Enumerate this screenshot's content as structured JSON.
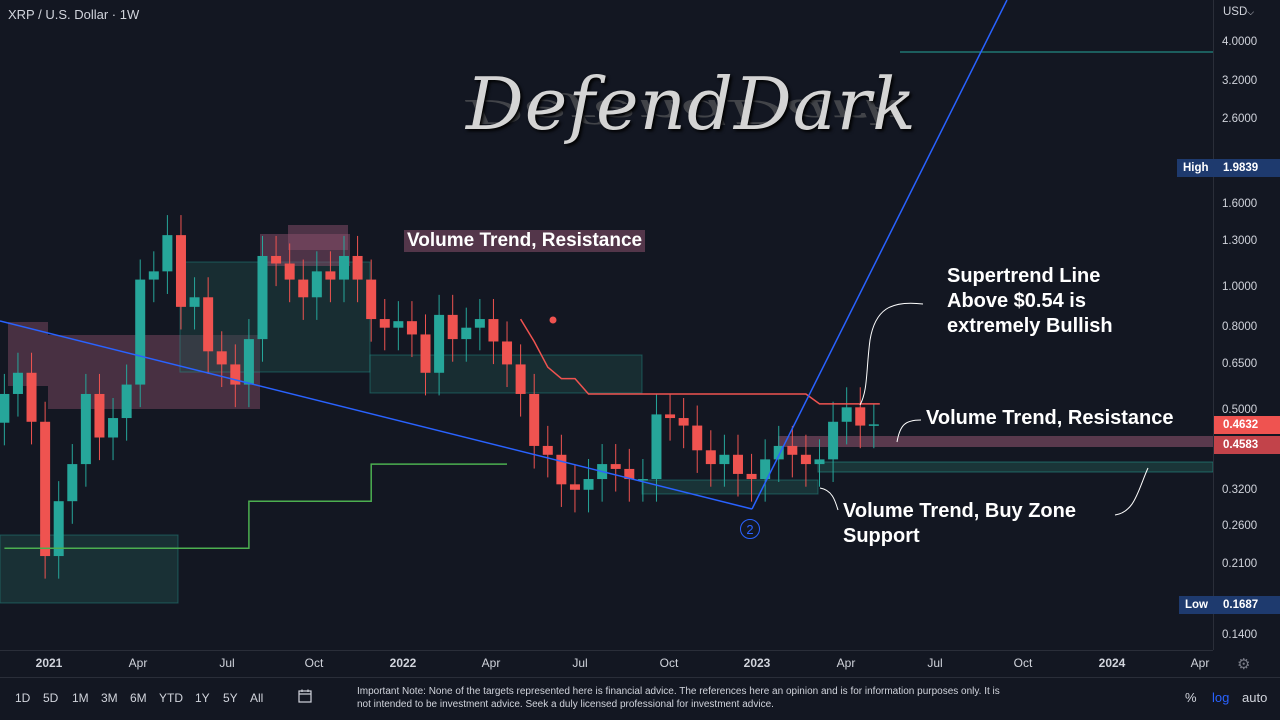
{
  "header": {
    "symbol": "XRP / U.S. Dollar · 1W"
  },
  "logo": {
    "text": "DefendDark"
  },
  "price_axis": {
    "currency": "USD",
    "currency_icon": "chevron-down-icon",
    "ticks": [
      "4.0000",
      "3.2000",
      "2.6000",
      "1.6000",
      "1.3000",
      "1.0000",
      "0.8000",
      "0.6500",
      "0.5000",
      "0.3200",
      "0.2600",
      "0.2100",
      "0.1400"
    ],
    "current_price": "0.4632",
    "support_price": "0.4583",
    "high_label": "High",
    "high_value": "1.9839",
    "low_label": "Low",
    "low_value": "0.1687"
  },
  "time_axis": {
    "labels": [
      "2021",
      "Apr",
      "Jul",
      "Oct",
      "2022",
      "Apr",
      "Jul",
      "Oct",
      "2023",
      "Apr",
      "Jul",
      "Oct",
      "2024",
      "Apr"
    ],
    "settings_icon": "gear-icon"
  },
  "annotations": {
    "top_resistance": "Volume Trend, Resistance",
    "supertrend_line1": "Supertrend Line",
    "supertrend_line2": "Above $0.54 is",
    "supertrend_line3": "extremely Bullish",
    "right_resistance": "Volume Trend, Resistance",
    "buy_zone_line1": "Volume Trend, Buy Zone",
    "buy_zone_line2": "Support",
    "wave_label": "2"
  },
  "bottom_bar": {
    "ranges": [
      "1D",
      "5D",
      "1M",
      "3M",
      "6M",
      "YTD",
      "1Y",
      "5Y",
      "All"
    ],
    "calendar_icon": "calendar-range-icon",
    "note": "Important Note: None of the targets represented here is financial advice. The references here an opinion and is for information purposes only. It is not intended to be investment advice. Seek a duly licensed professional for investment advice.",
    "percent": "%",
    "log": "log",
    "auto": "auto"
  },
  "colors": {
    "background": "#131722",
    "up": "#26a69a",
    "down": "#ef5350",
    "trendline": "#2962ff",
    "supertrend_green": "#4caf50",
    "supertrend_red": "#ef5350",
    "resistance_zone": "#89506b",
    "support_zone": "#1f4a48"
  },
  "chart_data": {
    "type": "candlestick",
    "y_scale": "log",
    "ylim": [
      0.12,
      4.8
    ],
    "x": [
      "2020-11-16",
      "2020-11-30",
      "2020-12-14",
      "2020-12-28",
      "2021-01-11",
      "2021-01-25",
      "2021-02-08",
      "2021-02-22",
      "2021-03-08",
      "2021-03-22",
      "2021-04-05",
      "2021-04-19",
      "2021-05-03",
      "2021-05-17",
      "2021-05-31",
      "2021-06-14",
      "2021-06-28",
      "2021-07-12",
      "2021-07-26",
      "2021-08-09",
      "2021-08-23",
      "2021-09-06",
      "2021-09-20",
      "2021-10-04",
      "2021-10-18",
      "2021-11-01",
      "2021-11-15",
      "2021-11-29",
      "2021-12-13",
      "2021-12-27",
      "2022-01-10",
      "2022-01-24",
      "2022-02-07",
      "2022-02-21",
      "2022-03-07",
      "2022-03-21",
      "2022-04-04",
      "2022-04-18",
      "2022-05-02",
      "2022-05-16",
      "2022-05-30",
      "2022-06-13",
      "2022-06-27",
      "2022-07-11",
      "2022-07-25",
      "2022-08-08",
      "2022-08-22",
      "2022-09-05",
      "2022-09-19",
      "2022-10-03",
      "2022-10-17",
      "2022-10-31",
      "2022-11-14",
      "2022-11-28",
      "2022-12-12",
      "2022-12-26",
      "2023-01-09",
      "2023-01-23",
      "2023-02-06",
      "2023-02-20",
      "2023-03-06",
      "2023-03-20",
      "2023-04-03",
      "2023-04-17",
      "2023-05-01"
    ],
    "close": [
      0.55,
      0.62,
      0.47,
      0.22,
      0.3,
      0.37,
      0.55,
      0.43,
      0.48,
      0.58,
      1.05,
      1.1,
      1.35,
      0.9,
      0.95,
      0.7,
      0.65,
      0.58,
      0.75,
      1.2,
      1.15,
      1.05,
      0.95,
      1.1,
      1.05,
      1.2,
      1.05,
      0.84,
      0.8,
      0.83,
      0.77,
      0.62,
      0.86,
      0.75,
      0.8,
      0.84,
      0.74,
      0.65,
      0.55,
      0.41,
      0.39,
      0.33,
      0.32,
      0.34,
      0.37,
      0.36,
      0.34,
      0.34,
      0.49,
      0.48,
      0.46,
      0.4,
      0.37,
      0.39,
      0.35,
      0.34,
      0.38,
      0.41,
      0.39,
      0.37,
      0.38,
      0.47,
      0.51,
      0.46,
      0.4632
    ],
    "supertrend": [
      0.23,
      0.23,
      0.23,
      0.23,
      0.23,
      0.23,
      0.23,
      0.23,
      0.23,
      0.23,
      0.23,
      0.23,
      0.23,
      0.23,
      0.23,
      0.23,
      0.23,
      0.23,
      0.3,
      0.3,
      0.3,
      0.3,
      0.3,
      0.3,
      0.3,
      0.3,
      0.3,
      0.37,
      0.37,
      0.37,
      0.37,
      0.37,
      0.37,
      0.37,
      0.37,
      0.37,
      0.37,
      0.37,
      0.84,
      0.74,
      0.64,
      0.6,
      0.6,
      0.55,
      0.55,
      0.55,
      0.55,
      0.55,
      0.55,
      0.55,
      0.55,
      0.55,
      0.55,
      0.55,
      0.55,
      0.55,
      0.55,
      0.55,
      0.55,
      0.55,
      0.52,
      0.52,
      0.52,
      0.52,
      0.52
    ]
  }
}
